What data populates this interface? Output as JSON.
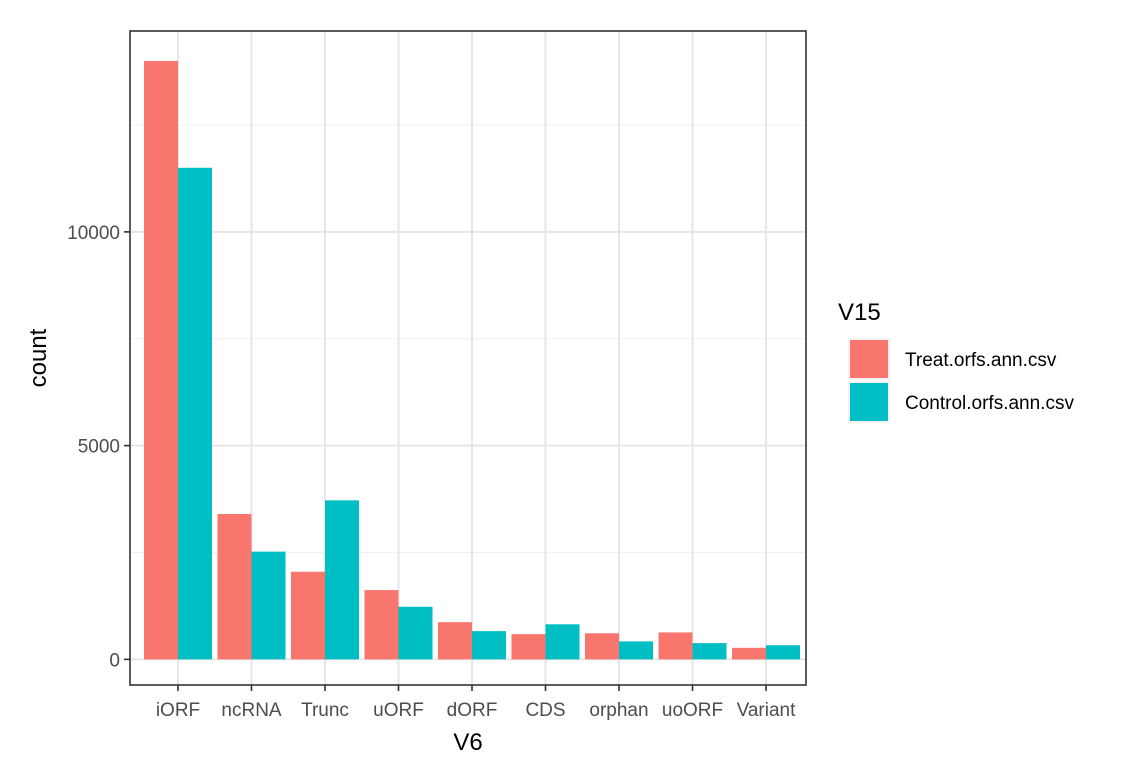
{
  "chart_data": {
    "type": "bar",
    "xlabel": "V6",
    "ylabel": "count",
    "categories": [
      "iORF",
      "ncRNA",
      "Trunc",
      "uORF",
      "dORF",
      "CDS",
      "orphan",
      "uoORF",
      "Variant"
    ],
    "series": [
      {
        "name": "Treat.orfs.ann.csv",
        "color": "#F8766D",
        "values": [
          14000,
          3400,
          2050,
          1620,
          870,
          590,
          610,
          630,
          270
        ]
      },
      {
        "name": "Control.orfs.ann.csv",
        "color": "#00BFC4",
        "values": [
          11500,
          2520,
          3720,
          1230,
          660,
          820,
          420,
          380,
          330
        ]
      }
    ],
    "ylim": [
      -600,
      14700
    ],
    "yticks": [
      0,
      5000,
      10000
    ],
    "ytick_labels": [
      "0",
      "5000",
      "10000"
    ],
    "legend": {
      "title": "V15",
      "position": "right"
    },
    "grid": true,
    "theme": "bw"
  }
}
